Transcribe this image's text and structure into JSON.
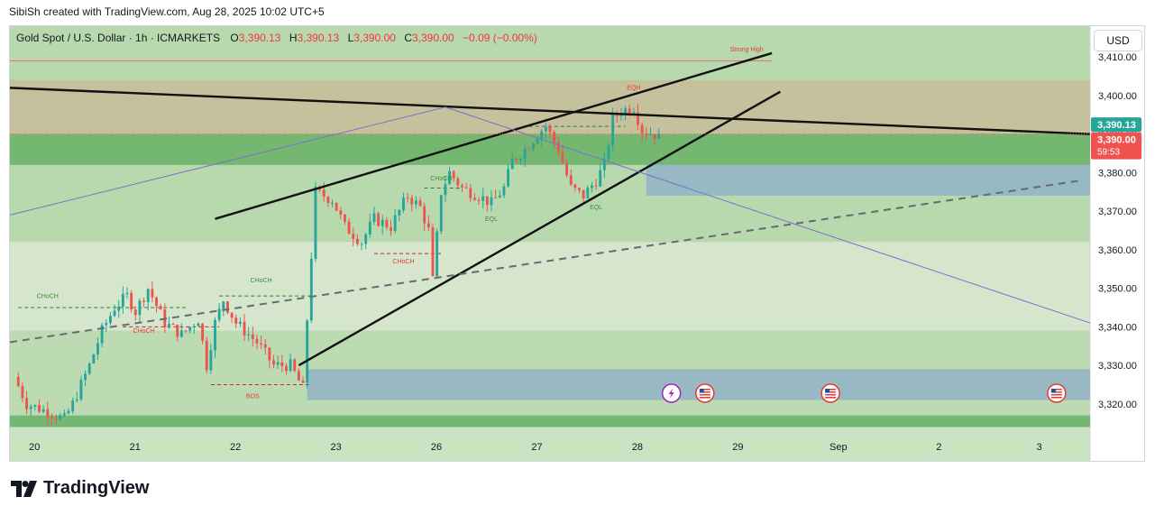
{
  "header": {
    "credit": "SibiSh created with TradingView.com, Aug 28, 2025 10:02 UTC+5"
  },
  "legend": {
    "symbol": "Gold Spot / U.S. Dollar · 1h · ICMARKETS",
    "o_label": "O",
    "o_value": "3,390.13",
    "h_label": "H",
    "h_value": "3,390.13",
    "l_label": "L",
    "l_value": "3,390.00",
    "c_label": "C",
    "c_value": "3,390.00",
    "change": "−0.09 (−0.00%)"
  },
  "currency_button": "USD",
  "brand": {
    "name": "TradingView",
    "logo_icon": "tradingview-logo-icon"
  },
  "colors": {
    "up": "#26a69a",
    "down": "#ef5350",
    "zone_green": "#4caf50",
    "zone_blue": "#7fa6c9",
    "zone_tan": "#c8b89a",
    "label_red": "#e53935",
    "label_green": "#388e3c"
  },
  "chart_data": {
    "type": "candlestick",
    "ylim": [
      3312,
      3418
    ],
    "y_ticks": [
      {
        "value": 3410,
        "label": "3,410.00"
      },
      {
        "value": 3400,
        "label": "3,400.00"
      },
      {
        "value": 3390,
        "label": "3,390.00"
      },
      {
        "value": 3380,
        "label": "3,380.00"
      },
      {
        "value": 3370,
        "label": "3,370.00"
      },
      {
        "value": 3360,
        "label": "3,360.00"
      },
      {
        "value": 3350,
        "label": "3,350.00"
      },
      {
        "value": 3340,
        "label": "3,340.00"
      },
      {
        "value": 3330,
        "label": "3,330.00"
      },
      {
        "value": 3320,
        "label": "3,320.00"
      }
    ],
    "x_ticks": [
      {
        "t": 0,
        "label": "20"
      },
      {
        "t": 24,
        "label": "21"
      },
      {
        "t": 48,
        "label": "22"
      },
      {
        "t": 72,
        "label": "23"
      },
      {
        "t": 96,
        "label": "26"
      },
      {
        "t": 120,
        "label": "27"
      },
      {
        "t": 144,
        "label": "28"
      },
      {
        "t": 168,
        "label": "29"
      },
      {
        "t": 192,
        "label": "Sep"
      },
      {
        "t": 216,
        "label": "2"
      },
      {
        "t": 240,
        "label": "3"
      }
    ],
    "xlim": [
      -2,
      256
    ],
    "price_tags": [
      {
        "value": 3390.13,
        "label": "3,390.13",
        "kind": "bid"
      },
      {
        "value": 3390.0,
        "label": "3,390.00",
        "kind": "last",
        "countdown": "59:53"
      }
    ],
    "zones": [
      {
        "y1": 3404,
        "y2": 3390,
        "color": "tan"
      },
      {
        "y1": 3390,
        "y2": 3382,
        "color": "green"
      },
      {
        "y1": 3382,
        "y2": 3374,
        "color": "blue",
        "t_from": 150
      },
      {
        "y1": 3329,
        "y2": 3321,
        "color": "blue",
        "t_from": 69
      },
      {
        "y1": 3317,
        "y2": 3314,
        "color": "green"
      }
    ],
    "annotations": [
      {
        "text": "Strong High",
        "t": 174,
        "v": 3411.5,
        "color": "red"
      },
      {
        "text": "EQH",
        "t": 147,
        "v": 3401.5,
        "color": "red"
      },
      {
        "text": "CHoCH",
        "t": 101,
        "v": 3378,
        "color": "green"
      },
      {
        "text": "EQL",
        "t": 113,
        "v": 3367.5,
        "color": "green"
      },
      {
        "text": "EQL",
        "t": 138,
        "v": 3370.5,
        "color": "green"
      },
      {
        "text": "CHoCH",
        "t": 92,
        "v": 3356.5,
        "color": "red"
      },
      {
        "text": "CHoCH",
        "t": 58,
        "v": 3351.5,
        "color": "green"
      },
      {
        "text": "CHoCH",
        "t": 7,
        "v": 3347.5,
        "color": "green"
      },
      {
        "text": "CHoCH",
        "t": 30,
        "v": 3338.5,
        "color": "red"
      },
      {
        "text": "BOS",
        "t": 56,
        "v": 3321.5,
        "color": "red"
      }
    ],
    "lines": [
      {
        "name": "upper-channel",
        "t1": 47,
        "v1": 3368,
        "t2": 180,
        "v2": 3411,
        "style": "solid"
      },
      {
        "name": "lower-channel",
        "t1": 67,
        "v1": 3330,
        "t2": 182,
        "v2": 3401,
        "style": "solid"
      },
      {
        "name": "descending-trendline",
        "t1": -2,
        "v1": 3402,
        "t2": 256,
        "v2": 3390,
        "style": "solid"
      },
      {
        "name": "dashed-trendline",
        "t1": -2,
        "v1": 3336,
        "t2": 254,
        "v2": 3378,
        "style": "dashed"
      },
      {
        "name": "purple-rise",
        "t1": -2,
        "v1": 3369,
        "t2": 102,
        "v2": 3397,
        "style": "thin"
      },
      {
        "name": "purple-fall",
        "t1": 102,
        "v1": 3397,
        "t2": 256,
        "v2": 3341,
        "style": "thin"
      }
    ],
    "waypoints": [
      [
        0,
        3327
      ],
      [
        3,
        3320
      ],
      [
        8,
        3318
      ],
      [
        12,
        3316
      ],
      [
        14,
        3320
      ],
      [
        18,
        3330
      ],
      [
        21,
        3339
      ],
      [
        24,
        3345
      ],
      [
        27,
        3348
      ],
      [
        29,
        3344
      ],
      [
        32,
        3350
      ],
      [
        36,
        3341
      ],
      [
        40,
        3338
      ],
      [
        44,
        3342
      ],
      [
        46,
        3330
      ],
      [
        48,
        3341
      ],
      [
        50,
        3347
      ],
      [
        53,
        3341
      ],
      [
        58,
        3336
      ],
      [
        62,
        3330
      ],
      [
        66,
        3330
      ],
      [
        69,
        3324
      ],
      [
        70,
        3342
      ],
      [
        72,
        3375
      ],
      [
        76,
        3373
      ],
      [
        79,
        3366
      ],
      [
        83,
        3362
      ],
      [
        86,
        3368
      ],
      [
        90,
        3366
      ],
      [
        94,
        3374
      ],
      [
        97,
        3371
      ],
      [
        99,
        3365
      ],
      [
        100,
        3352
      ],
      [
        102,
        3375
      ],
      [
        104,
        3380
      ],
      [
        107,
        3376
      ],
      [
        111,
        3374
      ],
      [
        114,
        3372
      ],
      [
        117,
        3376
      ],
      [
        119,
        3383
      ],
      [
        122,
        3386
      ],
      [
        125,
        3390
      ],
      [
        127,
        3392
      ],
      [
        130,
        3386
      ],
      [
        133,
        3376
      ],
      [
        136,
        3374
      ],
      [
        139,
        3378
      ],
      [
        141,
        3382
      ],
      [
        143,
        3394
      ],
      [
        145,
        3396
      ],
      [
        148,
        3397
      ],
      [
        150,
        3391
      ],
      [
        153,
        3390
      ]
    ]
  }
}
